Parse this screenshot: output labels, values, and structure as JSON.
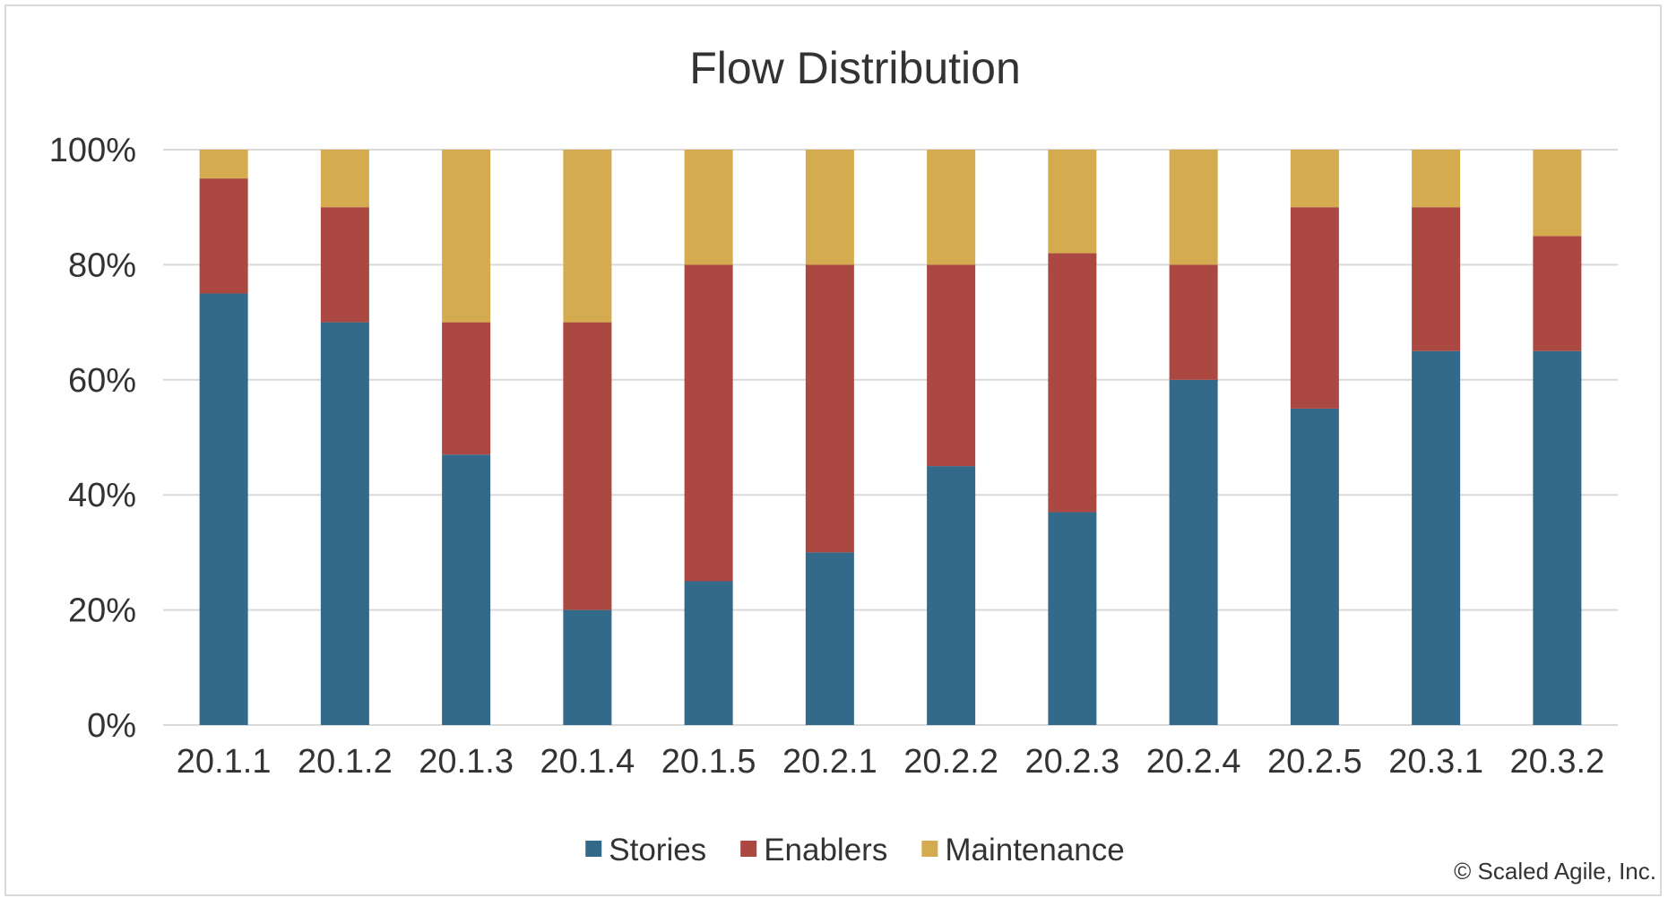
{
  "chart_data": {
    "type": "bar",
    "stacked": true,
    "title": "Flow Distribution",
    "categories": [
      "20.1.1",
      "20.1.2",
      "20.1.3",
      "20.1.4",
      "20.1.5",
      "20.2.1",
      "20.2.2",
      "20.2.3",
      "20.2.4",
      "20.2.5",
      "20.3.1",
      "20.3.2"
    ],
    "series": [
      {
        "name": "Stories",
        "color": "#336a8a",
        "values": [
          75,
          70,
          47,
          20,
          25,
          30,
          45,
          37,
          60,
          55,
          65,
          65
        ]
      },
      {
        "name": "Enablers",
        "color": "#ac4842",
        "values": [
          20,
          20,
          23,
          50,
          55,
          50,
          35,
          45,
          20,
          35,
          25,
          20
        ]
      },
      {
        "name": "Maintenance",
        "color": "#d5ab4f",
        "values": [
          5,
          10,
          30,
          30,
          20,
          20,
          20,
          18,
          20,
          10,
          10,
          15
        ]
      }
    ],
    "ylim": [
      0,
      100
    ],
    "yticks": [
      "0%",
      "20%",
      "40%",
      "60%",
      "80%",
      "100%"
    ],
    "ytick_values": [
      0,
      20,
      40,
      60,
      80,
      100
    ],
    "grid": true,
    "legend": "bottom",
    "gridline_color": "#d9d9d9"
  },
  "copyright": "© Scaled Agile, Inc."
}
